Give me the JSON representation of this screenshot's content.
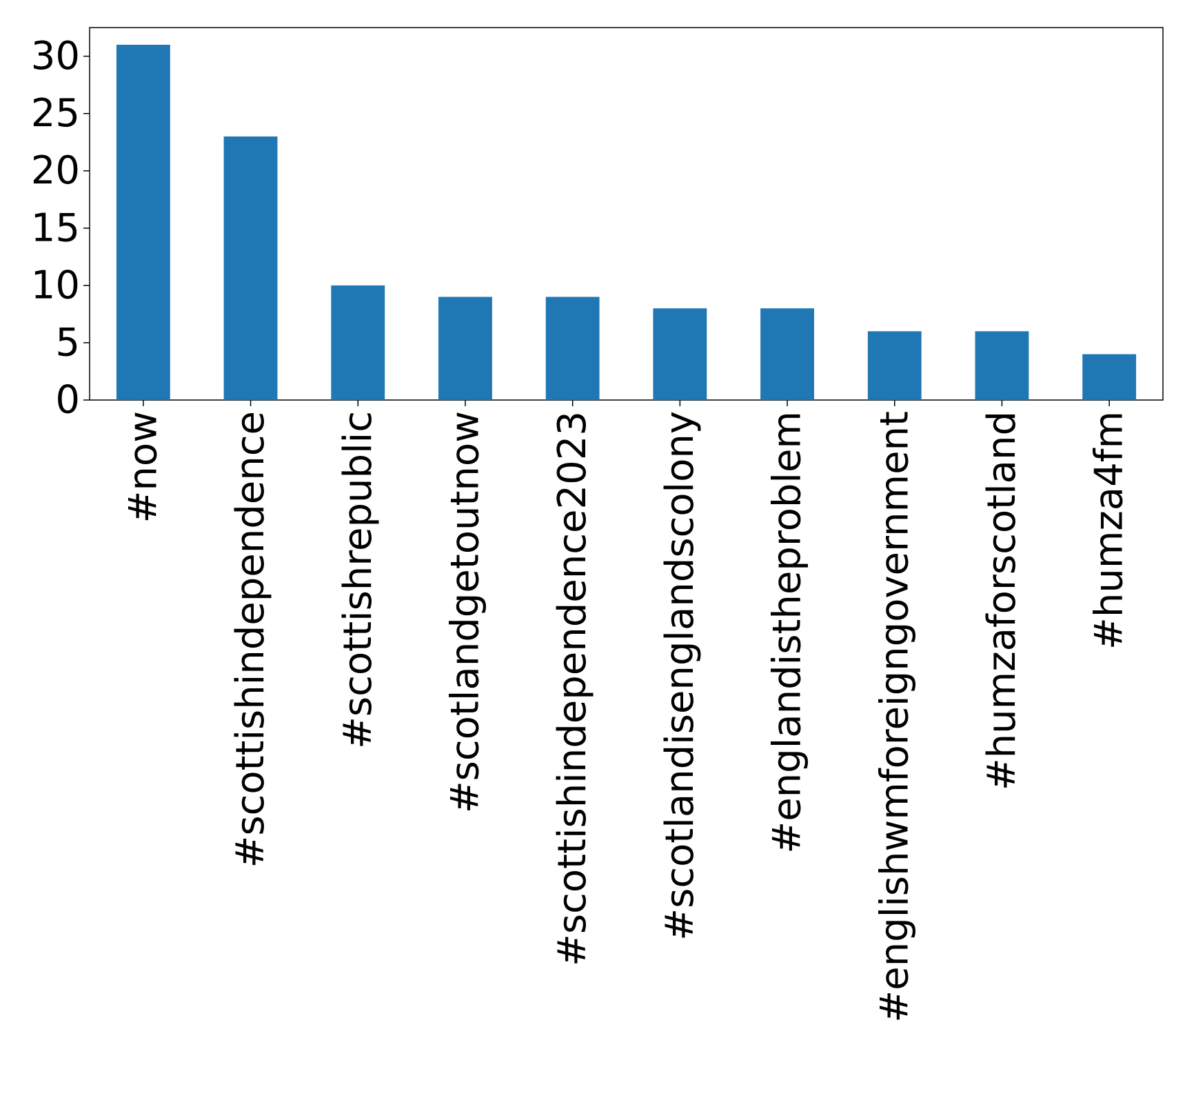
{
  "chart_data": {
    "type": "bar",
    "categories": [
      "#now",
      "#scottishindependence",
      "#scottishrepublic",
      "#scotlandgetoutnow",
      "#scottishindependence2023",
      "#scotlandisenglandscolony",
      "#englandistheproblem",
      "#englishwmforeigngovernment",
      "#humzaforscotland",
      "#humza4fm"
    ],
    "values": [
      31,
      23,
      10,
      9,
      9,
      8,
      8,
      6,
      6,
      4
    ],
    "yticks": [
      "0",
      "5",
      "10",
      "15",
      "20",
      "25",
      "30"
    ],
    "ylim": [
      0,
      32.5
    ],
    "bar_color": "#1f77b4",
    "grid": false,
    "title": "",
    "xlabel": "",
    "ylabel": ""
  }
}
